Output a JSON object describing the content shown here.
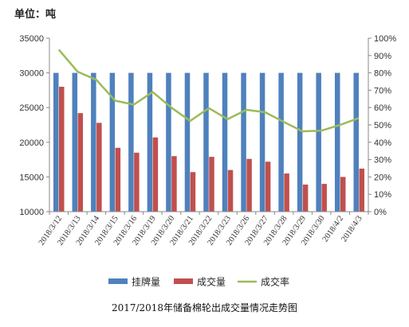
{
  "unit_label": "单位：吨",
  "caption": "2017/2018年储备棉轮出成交量情况走势图",
  "chart_data": {
    "type": "bar",
    "categories": [
      "2018/3/12",
      "2018/3/13",
      "2018/3/14",
      "2018/3/15",
      "2018/3/16",
      "2018/3/19",
      "2018/3/20",
      "2018/3/21",
      "2018/3/22",
      "2018/3/23",
      "2018/3/26",
      "2018/3/27",
      "2018/3/28",
      "2018/3/29",
      "2018/3/30",
      "2018/4/2",
      "2018/4/3"
    ],
    "series": [
      {
        "name": "挂牌量",
        "type": "bar",
        "axis": "left",
        "color": "#4f81bd",
        "values": [
          30000,
          30000,
          30000,
          30000,
          30000,
          30000,
          30000,
          30000,
          30000,
          30000,
          30000,
          30000,
          30000,
          30000,
          30000,
          30000,
          30000
        ]
      },
      {
        "name": "成交量",
        "type": "bar",
        "axis": "left",
        "color": "#c0504d",
        "values": [
          28000,
          24200,
          22800,
          19200,
          18500,
          20700,
          18000,
          15700,
          17900,
          16000,
          17600,
          17200,
          15500,
          13900,
          14000,
          15000,
          16200
        ]
      },
      {
        "name": "成交率",
        "type": "line",
        "axis": "right",
        "color": "#9bbb59",
        "values": [
          0.934,
          0.807,
          0.76,
          0.64,
          0.617,
          0.69,
          0.6,
          0.523,
          0.597,
          0.533,
          0.587,
          0.573,
          0.517,
          0.463,
          0.467,
          0.5,
          0.54
        ]
      }
    ],
    "left_axis": {
      "min": 10000,
      "max": 35000,
      "step": 5000,
      "ticks": [
        "10000",
        "15000",
        "20000",
        "25000",
        "30000",
        "35000"
      ]
    },
    "right_axis": {
      "min": 0,
      "max": 1,
      "step": 0.1,
      "ticks": [
        "0%",
        "10%",
        "20%",
        "30%",
        "40%",
        "50%",
        "60%",
        "70%",
        "80%",
        "90%",
        "100%"
      ]
    },
    "legend": {
      "position": "bottom"
    },
    "grid": false
  }
}
